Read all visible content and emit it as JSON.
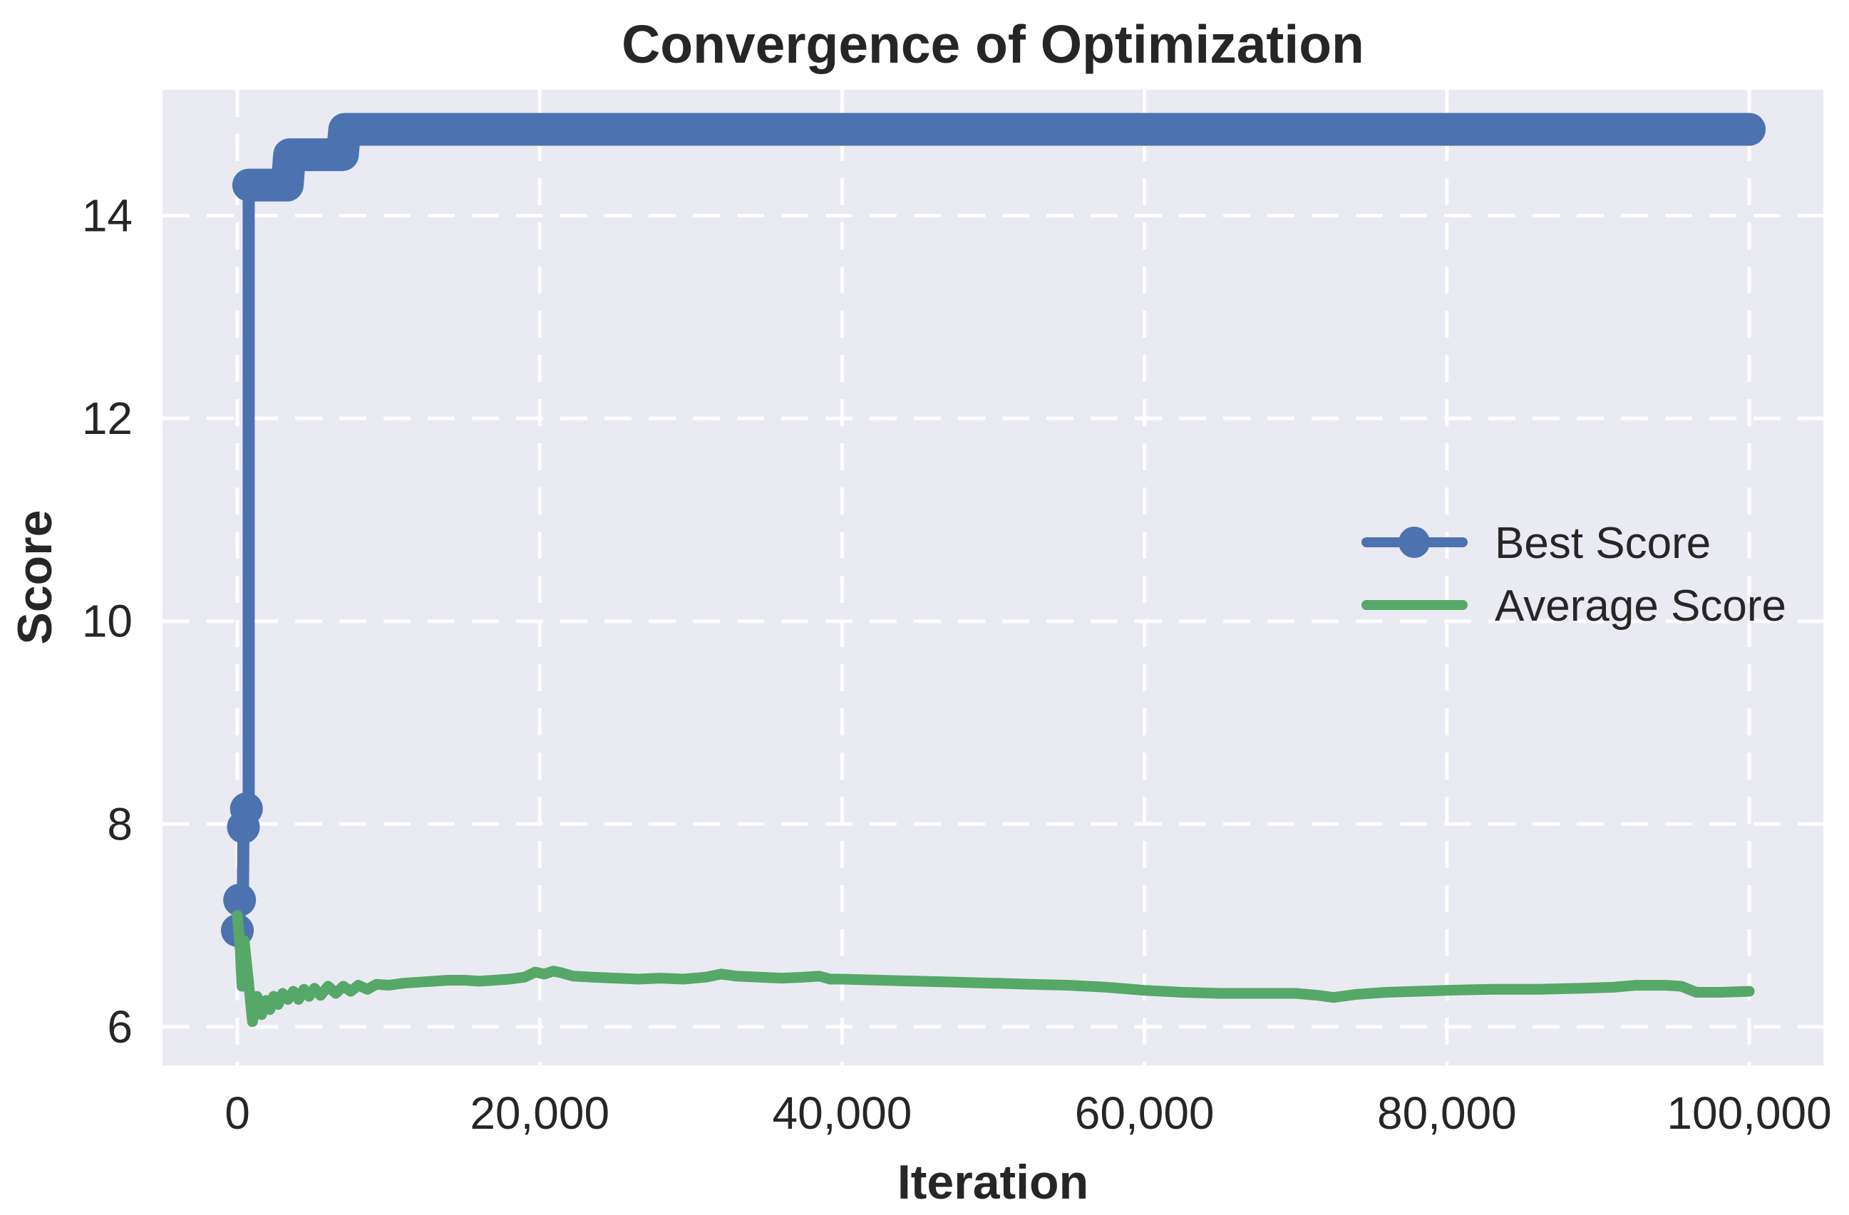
{
  "chart_data": {
    "type": "line",
    "title": "Convergence of Optimization",
    "xlabel": "Iteration",
    "ylabel": "Score",
    "xlim": [
      -4950,
      104900
    ],
    "ylim": [
      5.62,
      15.24
    ],
    "xticks": [
      0,
      20000,
      40000,
      60000,
      80000,
      100000
    ],
    "xtick_labels": [
      "0",
      "20,000",
      "40,000",
      "60,000",
      "80,000",
      "100,000"
    ],
    "yticks": [
      6,
      8,
      10,
      12,
      14
    ],
    "ytick_labels": [
      "6",
      "8",
      "10",
      "12",
      "14"
    ],
    "plot_bg": "#eaeaf2",
    "fig_bg": "#ffffff",
    "text_color": "#262626",
    "grid": {
      "color": "#ffffff",
      "width": 5,
      "dash": "38 24"
    },
    "legend": {
      "position": "center right",
      "frame": false
    },
    "series": [
      {
        "name": "Best Score",
        "color": "#4C72B0",
        "line_width": 17,
        "marker": "o",
        "marker_radius": 23,
        "band_width": 46,
        "band_from": 8,
        "marker_points": [
          [
            0,
            6.95
          ],
          [
            150,
            7.25
          ],
          [
            400,
            7.97
          ],
          [
            600,
            8.15
          ]
        ],
        "points": [
          [
            0,
            6.95
          ],
          [
            120,
            6.95
          ],
          [
            150,
            7.25
          ],
          [
            370,
            7.25
          ],
          [
            400,
            7.97
          ],
          [
            570,
            7.97
          ],
          [
            600,
            8.15
          ],
          [
            750,
            8.15
          ],
          [
            750,
            14.3
          ],
          [
            3300,
            14.3
          ],
          [
            3450,
            14.6
          ],
          [
            6950,
            14.6
          ],
          [
            7100,
            14.85
          ],
          [
            100000,
            14.85
          ]
        ]
      },
      {
        "name": "Average Score",
        "color": "#55A868",
        "line_width": 15,
        "marker": null,
        "points": [
          [
            0,
            7.1
          ],
          [
            200,
            6.75
          ],
          [
            300,
            6.4
          ],
          [
            450,
            6.85
          ],
          [
            700,
            6.5
          ],
          [
            1000,
            6.05
          ],
          [
            1300,
            6.3
          ],
          [
            1600,
            6.12
          ],
          [
            1900,
            6.26
          ],
          [
            2150,
            6.17
          ],
          [
            2400,
            6.3
          ],
          [
            2700,
            6.22
          ],
          [
            3000,
            6.33
          ],
          [
            3350,
            6.27
          ],
          [
            3700,
            6.35
          ],
          [
            4050,
            6.27
          ],
          [
            4400,
            6.37
          ],
          [
            4750,
            6.3
          ],
          [
            5100,
            6.38
          ],
          [
            5500,
            6.31
          ],
          [
            6000,
            6.4
          ],
          [
            6500,
            6.33
          ],
          [
            7000,
            6.4
          ],
          [
            7500,
            6.35
          ],
          [
            8000,
            6.41
          ],
          [
            8600,
            6.37
          ],
          [
            9200,
            6.42
          ],
          [
            10000,
            6.41
          ],
          [
            11000,
            6.43
          ],
          [
            12000,
            6.44
          ],
          [
            13000,
            6.45
          ],
          [
            14000,
            6.46
          ],
          [
            15000,
            6.46
          ],
          [
            16000,
            6.45
          ],
          [
            17000,
            6.46
          ],
          [
            18000,
            6.47
          ],
          [
            19000,
            6.49
          ],
          [
            19700,
            6.54
          ],
          [
            20300,
            6.52
          ],
          [
            20900,
            6.55
          ],
          [
            21500,
            6.53
          ],
          [
            22200,
            6.5
          ],
          [
            23500,
            6.49
          ],
          [
            25000,
            6.48
          ],
          [
            26500,
            6.47
          ],
          [
            28000,
            6.48
          ],
          [
            29500,
            6.47
          ],
          [
            31000,
            6.49
          ],
          [
            32000,
            6.52
          ],
          [
            33000,
            6.5
          ],
          [
            34500,
            6.49
          ],
          [
            36000,
            6.48
          ],
          [
            37500,
            6.49
          ],
          [
            38500,
            6.5
          ],
          [
            39200,
            6.47
          ],
          [
            40000,
            6.47
          ],
          [
            42500,
            6.46
          ],
          [
            45000,
            6.45
          ],
          [
            47500,
            6.44
          ],
          [
            50000,
            6.43
          ],
          [
            52500,
            6.42
          ],
          [
            55000,
            6.41
          ],
          [
            57500,
            6.39
          ],
          [
            60000,
            6.36
          ],
          [
            62500,
            6.34
          ],
          [
            65000,
            6.33
          ],
          [
            67500,
            6.33
          ],
          [
            70000,
            6.33
          ],
          [
            71500,
            6.31
          ],
          [
            72500,
            6.29
          ],
          [
            74000,
            6.32
          ],
          [
            76000,
            6.34
          ],
          [
            78000,
            6.35
          ],
          [
            80000,
            6.36
          ],
          [
            83000,
            6.37
          ],
          [
            86000,
            6.37
          ],
          [
            89000,
            6.38
          ],
          [
            91000,
            6.39
          ],
          [
            92500,
            6.41
          ],
          [
            94500,
            6.41
          ],
          [
            95500,
            6.4
          ],
          [
            96500,
            6.34
          ],
          [
            98000,
            6.34
          ],
          [
            100000,
            6.35
          ]
        ]
      }
    ]
  }
}
